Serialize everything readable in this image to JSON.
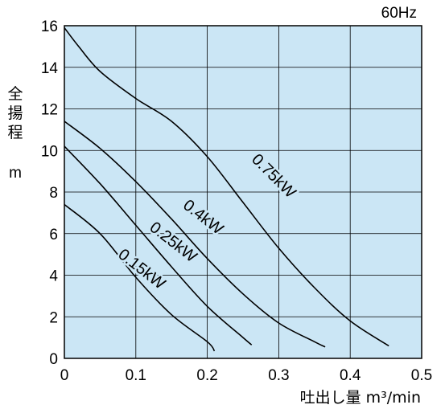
{
  "chart_data": {
    "type": "line",
    "corner_note": "60Hz",
    "ylabel_chars": [
      "全",
      "揚",
      "程"
    ],
    "yunit": "m",
    "xlabel": "吐出し量 m³/min",
    "xlim": [
      0,
      0.5
    ],
    "ylim": [
      0,
      16
    ],
    "x_ticks": [
      "0",
      "0.1",
      "0.2",
      "0.3",
      "0.4",
      "0.5"
    ],
    "y_ticks": [
      "0",
      "2",
      "4",
      "6",
      "8",
      "10",
      "12",
      "14",
      "16"
    ],
    "grid": true,
    "background_color": "#cbe6f5",
    "series": [
      {
        "name": "0.75kW",
        "x": [
          0,
          0.02,
          0.05,
          0.1,
          0.15,
          0.2,
          0.25,
          0.3,
          0.35,
          0.4,
          0.454
        ],
        "y": [
          15.9,
          15.0,
          13.8,
          12.5,
          11.4,
          9.7,
          7.5,
          5.3,
          3.4,
          1.8,
          0.6
        ]
      },
      {
        "name": "0.4kW",
        "x": [
          0,
          0.05,
          0.1,
          0.15,
          0.2,
          0.25,
          0.3,
          0.35,
          0.365
        ],
        "y": [
          11.4,
          10.1,
          8.5,
          6.7,
          4.8,
          3.1,
          1.7,
          0.8,
          0.55
        ]
      },
      {
        "name": "0.25kW",
        "x": [
          0,
          0.05,
          0.1,
          0.15,
          0.2,
          0.25,
          0.262
        ],
        "y": [
          10.2,
          8.4,
          6.4,
          4.4,
          2.5,
          1.0,
          0.65
        ]
      },
      {
        "name": "0.15kW",
        "x": [
          0,
          0.05,
          0.1,
          0.15,
          0.2,
          0.21
        ],
        "y": [
          7.4,
          6.0,
          3.9,
          2.1,
          0.8,
          0.35
        ]
      }
    ],
    "curve_labels": [
      {
        "text": "0.75kW",
        "x": 0.288,
        "y": 8.6,
        "angle": 45
      },
      {
        "text": "0.4kW",
        "x": 0.19,
        "y": 6.6,
        "angle": 38
      },
      {
        "text": "0.25kW",
        "x": 0.148,
        "y": 5.4,
        "angle": 38
      },
      {
        "text": "0.15kW",
        "x": 0.104,
        "y": 4.1,
        "angle": 38
      }
    ]
  }
}
